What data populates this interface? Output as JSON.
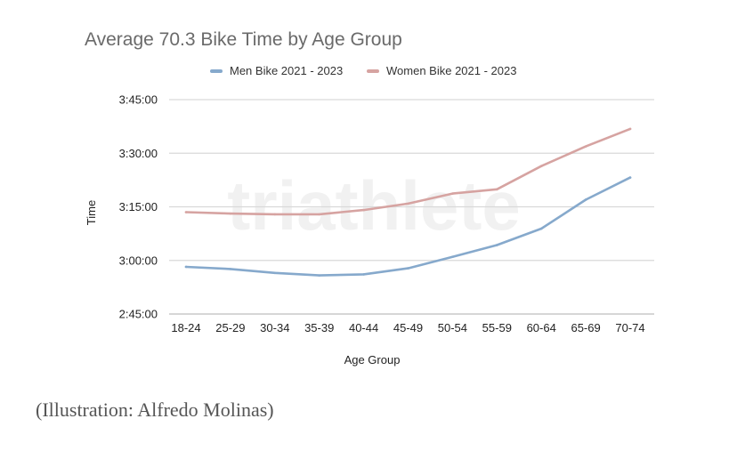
{
  "chart_data": {
    "type": "line",
    "title": "Average 70.3 Bike Time by Age Group",
    "xlabel": "Age Group",
    "ylabel": "Time",
    "categories": [
      "18-24",
      "25-29",
      "30-34",
      "35-39",
      "40-44",
      "45-49",
      "50-54",
      "55-59",
      "60-64",
      "65-69",
      "70-74"
    ],
    "y_unit": "minutes",
    "ylim": [
      165,
      225
    ],
    "yticks": [
      165,
      180,
      195,
      210,
      225
    ],
    "ytick_labels": [
      "2:45:00",
      "3:00:00",
      "3:15:00",
      "3:30:00",
      "3:45:00"
    ],
    "grid": true,
    "legend_position": "top",
    "series": [
      {
        "name": "Men Bike 2021 - 2023",
        "color": "#86a9cc",
        "values": [
          178.2,
          177.6,
          176.5,
          175.8,
          176.1,
          177.8,
          181.0,
          184.3,
          188.9,
          197.0,
          203.2
        ]
      },
      {
        "name": "Women Bike 2021 - 2023",
        "color": "#d6a3a1",
        "values": [
          193.5,
          193.1,
          192.9,
          192.9,
          194.1,
          195.9,
          198.7,
          199.9,
          206.4,
          211.9,
          216.8
        ]
      }
    ]
  },
  "watermark": "triathlete",
  "caption": "(Illustration: Alfredo Molinas)"
}
